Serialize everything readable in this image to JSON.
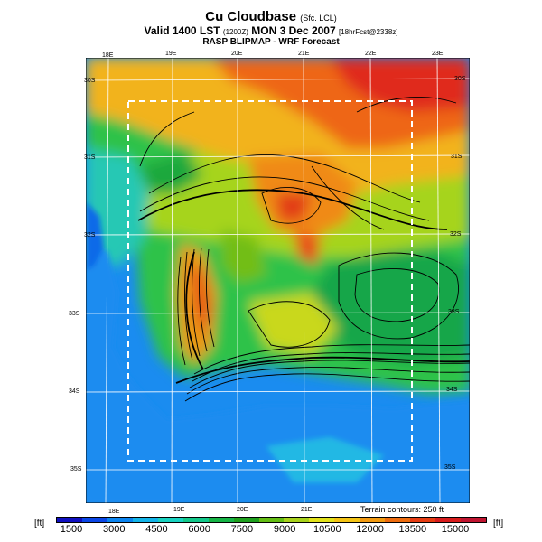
{
  "header": {
    "title": "Cu Cloudbase",
    "title_suffix": "(Sfc. LCL)",
    "valid_line": "Valid 1400 LST",
    "valid_time_z": "(1200Z)",
    "valid_date": "MON 3 Dec 2007",
    "forecast_code": "[18hrFcst@2338z]",
    "subtitle": "RASP BLIPMAP - WRF Forecast"
  },
  "map": {
    "longitude_ticks_top": [
      "18E",
      "19E",
      "20E",
      "21E",
      "22E",
      "23E"
    ],
    "longitude_ticks_bottom": [
      "18E",
      "19E",
      "20E",
      "21E"
    ],
    "latitude_ticks_left": [
      "30S",
      "31S",
      "32S",
      "33S",
      "34S",
      "35S"
    ],
    "latitude_ticks_right": [
      "30S",
      "31S",
      "32S",
      "33S",
      "34S",
      "35S"
    ],
    "terrain_note": "Terrain contours: 250 ft",
    "colors": {
      "ocean": "#1a8cf0",
      "deep_ocean": "#0050e0",
      "gridline": "#ffffff",
      "contour": "#000000",
      "inner_box": "#ffffff"
    }
  },
  "legend": {
    "unit_left": "[ft]",
    "unit_right": "[ft]",
    "labels": [
      "1500",
      "3000",
      "4500",
      "6000",
      "7500",
      "9000",
      "10500",
      "12000",
      "13500",
      "15000"
    ],
    "colors": [
      "#1010c0",
      "#0a46e6",
      "#0a84f0",
      "#12b4e8",
      "#18d2c0",
      "#12c88a",
      "#16b446",
      "#1ea01e",
      "#64be14",
      "#a8d21c",
      "#e2e21a",
      "#f4c414",
      "#f29a10",
      "#ee6c0e",
      "#e63c12",
      "#d81c1c",
      "#c01430"
    ]
  }
}
